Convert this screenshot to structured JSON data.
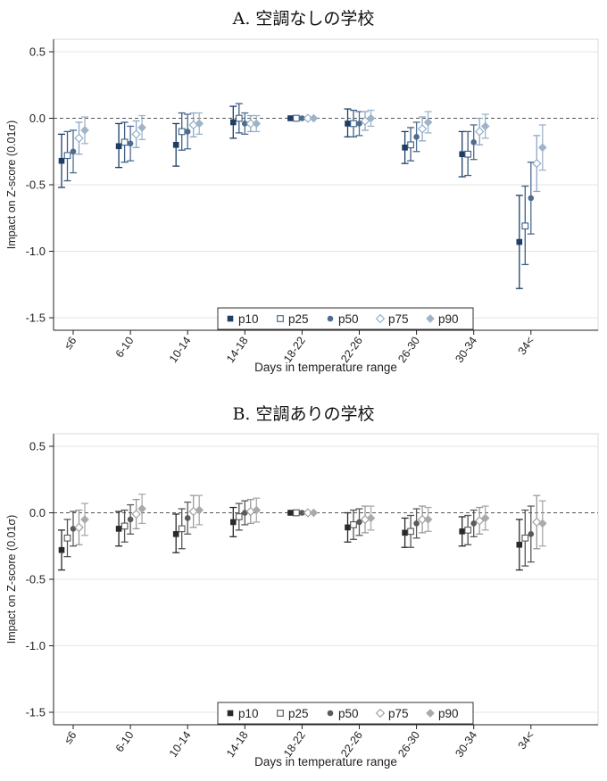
{
  "chart_data": [
    {
      "type": "scatter",
      "panel": "A",
      "title": "A. 空調なしの学校",
      "xlabel": "Days in temperature range",
      "ylabel": "Impact on Z-score (0.01σ)",
      "ylim": [
        -1.5,
        0.5
      ],
      "yticks": [
        "0.5",
        "0.0",
        "-0.5",
        "-1.0",
        "-1.5"
      ],
      "categories": [
        "≤6",
        "6-10",
        "10-14",
        "14-18",
        "18-22",
        "22-26",
        "26-30",
        "30-34",
        "34<"
      ],
      "legend_position": "bottom-center",
      "colors": {
        "p10": "#1f3e66",
        "p25": "#3d5f85",
        "p50": "#4e6c8f",
        "p75": "#8ea8c3",
        "p90": "#9fb4c9"
      },
      "series": [
        {
          "name": "p10",
          "marker": "square-filled",
          "values": [
            -0.32,
            -0.21,
            -0.2,
            -0.03,
            0.0,
            -0.04,
            -0.22,
            -0.27,
            -0.93
          ],
          "ci_low": [
            -0.52,
            -0.37,
            -0.36,
            -0.15,
            0.0,
            -0.14,
            -0.34,
            -0.44,
            -1.28
          ],
          "ci_high": [
            -0.12,
            -0.04,
            -0.04,
            0.09,
            0.0,
            0.07,
            -0.1,
            -0.1,
            -0.58
          ]
        },
        {
          "name": "p25",
          "marker": "square-hollow",
          "values": [
            -0.28,
            -0.18,
            -0.1,
            0.0,
            0.0,
            -0.04,
            -0.2,
            -0.27,
            -0.81
          ],
          "ci_low": [
            -0.47,
            -0.33,
            -0.24,
            -0.11,
            0.0,
            -0.14,
            -0.32,
            -0.43,
            -1.1
          ],
          "ci_high": [
            -0.1,
            -0.03,
            0.04,
            0.11,
            0.0,
            0.06,
            -0.07,
            -0.1,
            -0.51
          ]
        },
        {
          "name": "p50",
          "marker": "circle-filled",
          "values": [
            -0.25,
            -0.19,
            -0.1,
            -0.04,
            0.0,
            -0.04,
            -0.14,
            -0.18,
            -0.6
          ],
          "ci_low": [
            -0.41,
            -0.32,
            -0.23,
            -0.12,
            0.0,
            -0.13,
            -0.25,
            -0.31,
            -0.87
          ],
          "ci_high": [
            -0.09,
            -0.06,
            0.03,
            0.04,
            0.0,
            0.05,
            -0.03,
            -0.05,
            -0.33
          ]
        },
        {
          "name": "p75",
          "marker": "diamond-hollow",
          "values": [
            -0.15,
            -0.12,
            -0.05,
            -0.04,
            0.0,
            -0.02,
            -0.08,
            -0.1,
            -0.34
          ],
          "ci_low": [
            -0.27,
            -0.22,
            -0.14,
            -0.1,
            0.0,
            -0.09,
            -0.17,
            -0.2,
            -0.55
          ],
          "ci_high": [
            -0.03,
            -0.02,
            0.04,
            0.02,
            0.0,
            0.05,
            0.01,
            0.0,
            -0.13
          ]
        },
        {
          "name": "p90",
          "marker": "diamond-filled",
          "values": [
            -0.09,
            -0.07,
            -0.04,
            -0.04,
            0.0,
            0.0,
            -0.03,
            -0.06,
            -0.22
          ],
          "ci_low": [
            -0.19,
            -0.16,
            -0.12,
            -0.1,
            0.0,
            -0.06,
            -0.11,
            -0.15,
            -0.39
          ],
          "ci_high": [
            0.01,
            0.02,
            0.04,
            0.02,
            0.0,
            0.06,
            0.05,
            0.03,
            -0.05
          ]
        }
      ]
    },
    {
      "type": "scatter",
      "panel": "B",
      "title": "B. 空調ありの学校",
      "xlabel": "Days in temperature range",
      "ylabel": "Impact on Z-score (0.01σ)",
      "ylim": [
        -1.5,
        0.5
      ],
      "yticks": [
        "0.5",
        "0.0",
        "-0.5",
        "-1.0",
        "-1.5"
      ],
      "categories": [
        "≤6",
        "6-10",
        "10-14",
        "14-18",
        "18-22",
        "22-26",
        "26-30",
        "30-34",
        "34<"
      ],
      "legend_position": "bottom-center",
      "colors": {
        "p10": "#2a2a2a",
        "p25": "#555555",
        "p50": "#5a5a5a",
        "p75": "#9a9a9a",
        "p90": "#aaaaaa"
      },
      "series": [
        {
          "name": "p10",
          "marker": "square-filled",
          "values": [
            -0.28,
            -0.12,
            -0.16,
            -0.07,
            0.0,
            -0.11,
            -0.15,
            -0.14,
            -0.24
          ],
          "ci_low": [
            -0.43,
            -0.25,
            -0.3,
            -0.18,
            0.0,
            -0.22,
            -0.26,
            -0.25,
            -0.43
          ],
          "ci_high": [
            -0.13,
            0.01,
            -0.01,
            0.04,
            0.0,
            0.0,
            -0.04,
            -0.03,
            -0.05
          ]
        },
        {
          "name": "p25",
          "marker": "square-hollow",
          "values": [
            -0.19,
            -0.1,
            -0.12,
            -0.03,
            0.0,
            -0.09,
            -0.14,
            -0.13,
            -0.19
          ],
          "ci_low": [
            -0.33,
            -0.22,
            -0.27,
            -0.13,
            0.0,
            -0.2,
            -0.26,
            -0.24,
            -0.4
          ],
          "ci_high": [
            -0.05,
            0.02,
            0.03,
            0.07,
            0.0,
            0.02,
            -0.02,
            -0.02,
            0.02
          ]
        },
        {
          "name": "p50",
          "marker": "circle-filled",
          "values": [
            -0.12,
            -0.05,
            -0.04,
            0.0,
            0.0,
            -0.07,
            -0.08,
            -0.08,
            -0.16
          ],
          "ci_low": [
            -0.25,
            -0.16,
            -0.16,
            -0.09,
            0.0,
            -0.17,
            -0.19,
            -0.18,
            -0.37
          ],
          "ci_high": [
            0.01,
            0.06,
            0.08,
            0.09,
            0.0,
            0.03,
            0.03,
            0.02,
            0.05
          ]
        },
        {
          "name": "p75",
          "marker": "diamond-hollow",
          "values": [
            -0.11,
            -0.01,
            0.01,
            0.01,
            0.0,
            -0.05,
            -0.05,
            -0.06,
            -0.07
          ],
          "ci_low": [
            -0.24,
            -0.12,
            -0.11,
            -0.08,
            0.0,
            -0.15,
            -0.15,
            -0.16,
            -0.27
          ],
          "ci_high": [
            0.02,
            0.1,
            0.13,
            0.1,
            0.0,
            0.05,
            0.05,
            0.04,
            0.13
          ]
        },
        {
          "name": "p90",
          "marker": "diamond-filled",
          "values": [
            -0.05,
            0.03,
            0.02,
            0.02,
            0.0,
            -0.04,
            -0.05,
            -0.04,
            -0.08
          ],
          "ci_low": [
            -0.17,
            -0.08,
            -0.09,
            -0.07,
            0.0,
            -0.13,
            -0.14,
            -0.13,
            -0.25
          ],
          "ci_high": [
            0.07,
            0.14,
            0.13,
            0.11,
            0.0,
            0.05,
            0.04,
            0.05,
            0.09
          ]
        }
      ]
    }
  ]
}
